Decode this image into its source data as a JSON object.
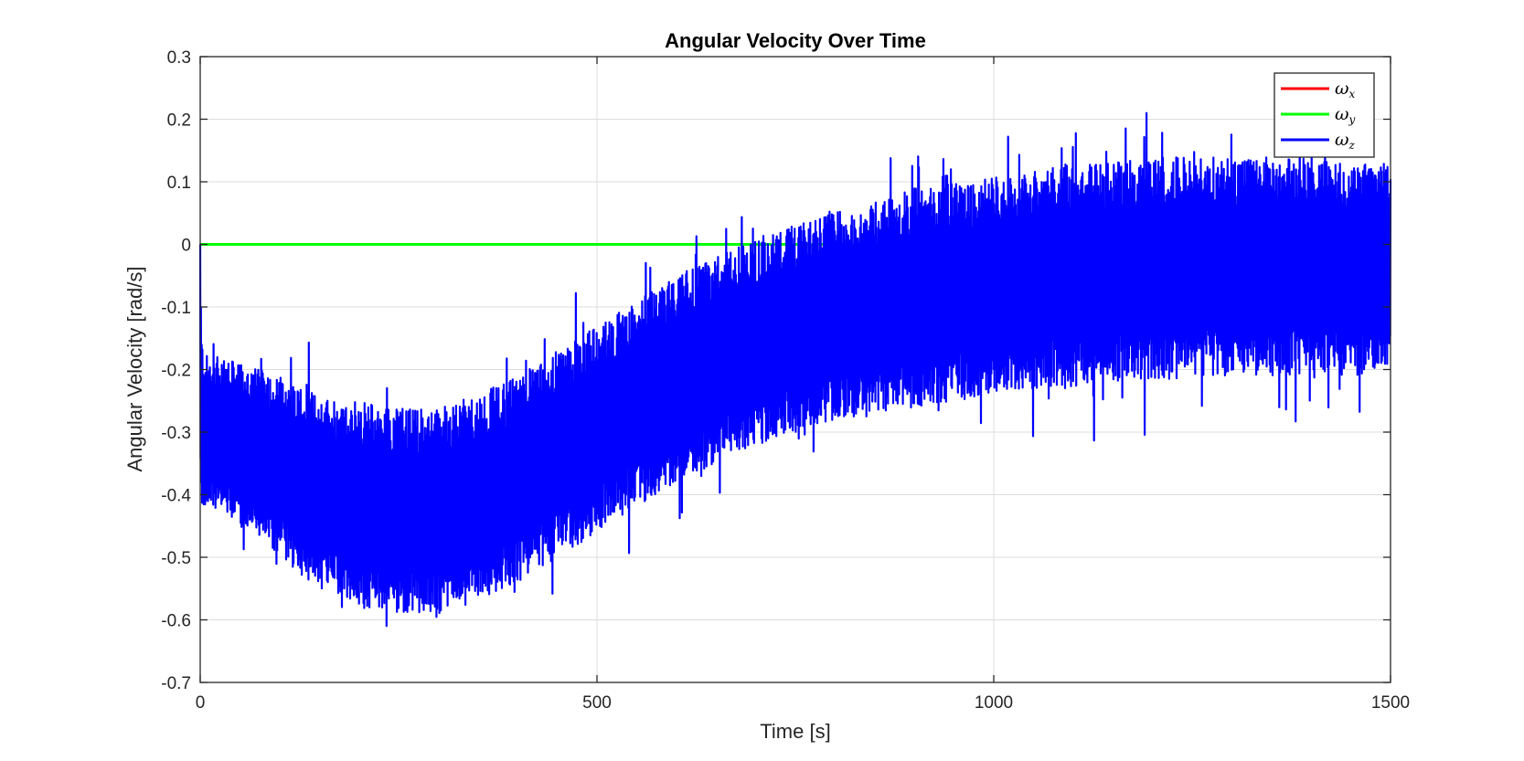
{
  "chart_data": {
    "type": "line",
    "title": "Angular Velocity Over Time",
    "xlabel": "Time [s]",
    "ylabel": "Angular Velocity [rad/s]",
    "xlim": [
      0,
      1500
    ],
    "ylim": [
      -0.7,
      0.3
    ],
    "xticks": [
      0,
      500,
      1000,
      1500
    ],
    "xtick_labels": [
      "0",
      "500",
      "1000",
      "1500"
    ],
    "yticks": [
      -0.7,
      -0.6,
      -0.5,
      -0.4,
      -0.3,
      -0.2,
      -0.1,
      0,
      0.1,
      0.2,
      0.3
    ],
    "ytick_labels": [
      "-0.7",
      "-0.6",
      "-0.5",
      "-0.4",
      "-0.3",
      "-0.2",
      "-0.1",
      "0",
      "0.1",
      "0.2",
      "0.3"
    ],
    "grid": true,
    "legend_position": "top-right",
    "series": [
      {
        "name": "ω",
        "subscript": "x",
        "color": "#ff0000",
        "x": [
          0,
          1500
        ],
        "y": [
          0,
          0
        ]
      },
      {
        "name": "ω",
        "subscript": "y",
        "color": "#00ff00",
        "x": [
          0,
          1500
        ],
        "y": [
          0,
          0
        ]
      },
      {
        "name": "ω",
        "subscript": "z",
        "color": "#0000ff",
        "style": "high-frequency oscillation",
        "x": [
          0,
          1,
          2,
          5,
          10,
          25,
          50,
          100,
          150,
          200,
          250,
          300,
          350,
          400,
          450,
          500,
          550,
          600,
          650,
          700,
          750,
          800,
          850,
          900,
          950,
          1000,
          1050,
          1100,
          1150,
          1200,
          1250,
          1300,
          1350,
          1400,
          1450,
          1500
        ],
        "y_upper": [
          0.0,
          -0.08,
          -0.15,
          -0.17,
          -0.18,
          -0.18,
          -0.19,
          -0.21,
          -0.24,
          -0.25,
          -0.26,
          -0.26,
          -0.24,
          -0.21,
          -0.17,
          -0.13,
          -0.09,
          -0.05,
          -0.02,
          0.01,
          0.03,
          0.05,
          0.07,
          0.09,
          0.1,
          0.11,
          0.12,
          0.13,
          0.13,
          0.14,
          0.14,
          0.14,
          0.14,
          0.14,
          0.13,
          0.13
        ],
        "y_lower": [
          -0.3,
          -0.45,
          -0.43,
          -0.42,
          -0.42,
          -0.43,
          -0.45,
          -0.5,
          -0.55,
          -0.58,
          -0.59,
          -0.59,
          -0.57,
          -0.54,
          -0.5,
          -0.46,
          -0.42,
          -0.38,
          -0.35,
          -0.32,
          -0.3,
          -0.28,
          -0.27,
          -0.26,
          -0.25,
          -0.24,
          -0.23,
          -0.23,
          -0.22,
          -0.22,
          -0.21,
          -0.21,
          -0.21,
          -0.21,
          -0.21,
          -0.21
        ],
        "y_peak_max": 0.21,
        "y_peak_min": -0.61
      }
    ]
  }
}
